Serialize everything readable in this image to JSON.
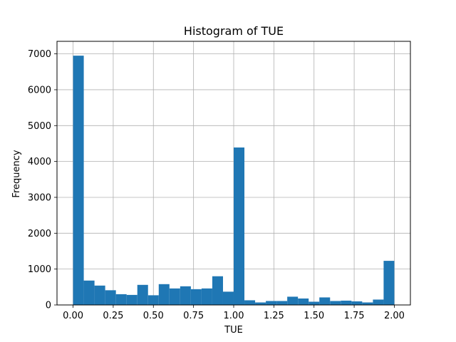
{
  "chart_data": {
    "type": "bar",
    "title": "Histogram of TUE",
    "xlabel": "TUE",
    "ylabel": "Frequency",
    "xlim": [
      -0.1,
      2.1
    ],
    "ylim": [
      0,
      7350
    ],
    "grid": true,
    "bar_color": "#1f77b4",
    "bin_width": 0.06667,
    "bins": [
      {
        "x0": 0.0,
        "value": 6950
      },
      {
        "x0": 0.0667,
        "value": 680
      },
      {
        "x0": 0.1333,
        "value": 540
      },
      {
        "x0": 0.2,
        "value": 410
      },
      {
        "x0": 0.2667,
        "value": 300
      },
      {
        "x0": 0.3333,
        "value": 280
      },
      {
        "x0": 0.4,
        "value": 560
      },
      {
        "x0": 0.4667,
        "value": 270
      },
      {
        "x0": 0.5333,
        "value": 580
      },
      {
        "x0": 0.6,
        "value": 460
      },
      {
        "x0": 0.6667,
        "value": 520
      },
      {
        "x0": 0.7333,
        "value": 440
      },
      {
        "x0": 0.8,
        "value": 460
      },
      {
        "x0": 0.8667,
        "value": 800
      },
      {
        "x0": 0.9333,
        "value": 370
      },
      {
        "x0": 1.0,
        "value": 4390
      },
      {
        "x0": 1.0667,
        "value": 130
      },
      {
        "x0": 1.1333,
        "value": 70
      },
      {
        "x0": 1.2,
        "value": 110
      },
      {
        "x0": 1.2667,
        "value": 110
      },
      {
        "x0": 1.3333,
        "value": 230
      },
      {
        "x0": 1.4,
        "value": 180
      },
      {
        "x0": 1.4667,
        "value": 90
      },
      {
        "x0": 1.5333,
        "value": 210
      },
      {
        "x0": 1.6,
        "value": 110
      },
      {
        "x0": 1.6667,
        "value": 120
      },
      {
        "x0": 1.7333,
        "value": 100
      },
      {
        "x0": 1.8,
        "value": 70
      },
      {
        "x0": 1.8667,
        "value": 150
      },
      {
        "x0": 1.9333,
        "value": 1230
      }
    ],
    "x_ticks": [
      {
        "value": 0.0,
        "label": "0.00"
      },
      {
        "value": 0.25,
        "label": "0.25"
      },
      {
        "value": 0.5,
        "label": "0.50"
      },
      {
        "value": 0.75,
        "label": "0.75"
      },
      {
        "value": 1.0,
        "label": "1.00"
      },
      {
        "value": 1.25,
        "label": "1.25"
      },
      {
        "value": 1.5,
        "label": "1.50"
      },
      {
        "value": 1.75,
        "label": "1.75"
      },
      {
        "value": 2.0,
        "label": "2.00"
      }
    ],
    "y_ticks": [
      {
        "value": 0,
        "label": "0"
      },
      {
        "value": 1000,
        "label": "1000"
      },
      {
        "value": 2000,
        "label": "2000"
      },
      {
        "value": 3000,
        "label": "3000"
      },
      {
        "value": 4000,
        "label": "4000"
      },
      {
        "value": 5000,
        "label": "5000"
      },
      {
        "value": 6000,
        "label": "6000"
      },
      {
        "value": 7000,
        "label": "7000"
      }
    ]
  }
}
